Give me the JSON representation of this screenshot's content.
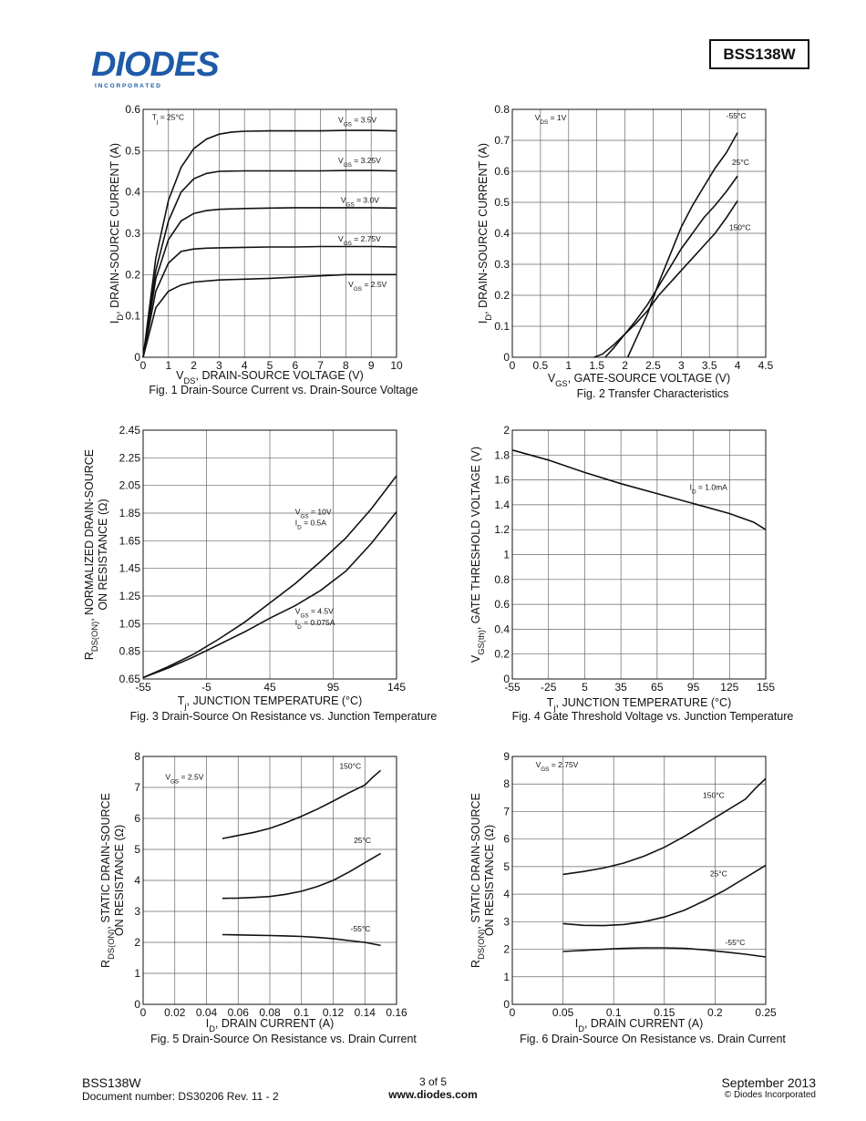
{
  "header": {
    "logo_text": "DIODES",
    "logo_sub": "I N C O R P O R A T E D",
    "part_number": "BSS138W",
    "brand_blue": "#1e5aa8"
  },
  "footer": {
    "part": "BSS138W",
    "doc": "Document number: DS30206 Rev. 11 - 2",
    "page": "3 of 5",
    "url": "www.diodes.com",
    "date": "September 2013",
    "copyright": "© Diodes Incorporated"
  },
  "chart_data": [
    {
      "type": "line",
      "title": "Fig. 1  Drain-Source Current vs. Drain-Source Voltage",
      "xlabel": "V_DS, DRAIN-SOURCE VOLTAGE (V)",
      "ylabel": "I_D, DRAIN-SOURCE CURRENT (A)",
      "xlim": [
        0,
        10
      ],
      "ylim": [
        0,
        0.6
      ],
      "xticks": [
        0,
        1,
        2,
        3,
        4,
        5,
        6,
        7,
        8,
        9,
        10
      ],
      "yticks": [
        0,
        0.1,
        0.2,
        0.3,
        0.4,
        0.5,
        0.6
      ],
      "xtick_labels": [
        "0",
        "1",
        "2",
        "3",
        "4",
        "5",
        "6",
        "7",
        "8",
        "9",
        "10"
      ],
      "ytick_labels": [
        "0",
        "0.1",
        "0.2",
        "0.3",
        "0.4",
        "0.5",
        "0.6"
      ],
      "annotations": [
        {
          "text": "T_j = 25°C",
          "x": 0.35,
          "y": 0.575
        },
        {
          "text": "V_GS = 3.5V",
          "x": 7.7,
          "y": 0.568
        },
        {
          "text": "V_GS = 3.25V",
          "x": 7.7,
          "y": 0.47
        },
        {
          "text": "V_GS = 3.0V",
          "x": 7.8,
          "y": 0.374
        },
        {
          "text": "V_GS = 2.75V",
          "x": 7.7,
          "y": 0.28
        },
        {
          "text": "V_GS = 2.5V",
          "x": 8.1,
          "y": 0.17
        }
      ],
      "series": [
        {
          "name": "V_GS = 3.5V",
          "x": [
            0,
            0.5,
            1,
            1.5,
            2,
            2.5,
            3,
            3.5,
            4,
            5,
            6,
            7,
            8,
            9,
            10
          ],
          "y": [
            0,
            0.24,
            0.38,
            0.46,
            0.505,
            0.528,
            0.54,
            0.545,
            0.547,
            0.548,
            0.548,
            0.548,
            0.549,
            0.549,
            0.548
          ]
        },
        {
          "name": "V_GS = 3.25V",
          "x": [
            0,
            0.5,
            1,
            1.5,
            2,
            2.5,
            3,
            4,
            5,
            6,
            7,
            8,
            9,
            10
          ],
          "y": [
            0,
            0.21,
            0.33,
            0.4,
            0.432,
            0.445,
            0.45,
            0.451,
            0.451,
            0.451,
            0.451,
            0.452,
            0.452,
            0.451
          ]
        },
        {
          "name": "V_GS = 3.0V",
          "x": [
            0,
            0.5,
            1,
            1.5,
            2,
            2.5,
            3,
            4,
            5,
            6,
            7,
            8,
            9,
            10
          ],
          "y": [
            0,
            0.19,
            0.285,
            0.33,
            0.348,
            0.355,
            0.358,
            0.36,
            0.361,
            0.362,
            0.362,
            0.362,
            0.362,
            0.361
          ]
        },
        {
          "name": "V_GS = 2.75V",
          "x": [
            0,
            0.5,
            1,
            1.5,
            2,
            2.5,
            3,
            4,
            5,
            6,
            7,
            8,
            9,
            10
          ],
          "y": [
            0,
            0.16,
            0.228,
            0.256,
            0.262,
            0.264,
            0.265,
            0.266,
            0.267,
            0.267,
            0.268,
            0.268,
            0.268,
            0.267
          ]
        },
        {
          "name": "V_GS = 2.5V",
          "x": [
            0,
            0.5,
            1,
            1.5,
            2,
            3,
            4,
            5,
            6,
            7,
            8,
            9,
            10
          ],
          "y": [
            0,
            0.12,
            0.16,
            0.175,
            0.182,
            0.187,
            0.189,
            0.191,
            0.194,
            0.197,
            0.2,
            0.2,
            0.2
          ]
        }
      ]
    },
    {
      "type": "line",
      "title": "Fig. 2  Transfer Characteristics",
      "xlabel": "V_GS, GATE-SOURCE VOLTAGE (V)",
      "ylabel": "I_D, DRAIN-SOURCE CURRENT (A)",
      "xlim": [
        0,
        4.5
      ],
      "ylim": [
        0,
        0.8
      ],
      "xticks": [
        0,
        0.5,
        1,
        1.5,
        2,
        2.5,
        3,
        3.5,
        4,
        4.5
      ],
      "yticks": [
        0,
        0.1,
        0.2,
        0.3,
        0.4,
        0.5,
        0.6,
        0.7,
        0.8
      ],
      "xtick_labels": [
        "0",
        "0.5",
        "1",
        "1.5",
        "2",
        "2.5",
        "3",
        "3.5",
        "4",
        "4.5"
      ],
      "ytick_labels": [
        "0",
        "0.1",
        "0.2",
        "0.3",
        "0.4",
        "0.5",
        "0.6",
        "0.7",
        "0.8"
      ],
      "annotations": [
        {
          "text": "V_DS = 1V",
          "x": 0.4,
          "y": 0.765
        },
        {
          "text": "-55°C",
          "x": 3.8,
          "y": 0.77
        },
        {
          "text": "25°C",
          "x": 3.9,
          "y": 0.62
        },
        {
          "text": "150°C",
          "x": 3.85,
          "y": 0.41
        }
      ],
      "series": [
        {
          "name": "-55°C",
          "x": [
            2.05,
            2.2,
            2.4,
            2.6,
            2.8,
            3.0,
            3.2,
            3.4,
            3.6,
            3.8,
            4.0
          ],
          "y": [
            0,
            0.06,
            0.14,
            0.24,
            0.33,
            0.42,
            0.49,
            0.55,
            0.61,
            0.66,
            0.725
          ]
        },
        {
          "name": "25°C",
          "x": [
            1.65,
            1.8,
            2.0,
            2.2,
            2.4,
            2.6,
            2.8,
            3.0,
            3.2,
            3.4,
            3.6,
            3.8,
            4.0
          ],
          "y": [
            0,
            0.03,
            0.075,
            0.12,
            0.17,
            0.23,
            0.29,
            0.35,
            0.4,
            0.45,
            0.49,
            0.535,
            0.585
          ]
        },
        {
          "name": "150°C",
          "x": [
            1.45,
            1.6,
            1.8,
            2.0,
            2.2,
            2.4,
            2.6,
            2.8,
            3.0,
            3.2,
            3.4,
            3.6,
            3.8,
            4.0
          ],
          "y": [
            0,
            0.01,
            0.04,
            0.075,
            0.11,
            0.15,
            0.2,
            0.24,
            0.28,
            0.32,
            0.36,
            0.4,
            0.45,
            0.505
          ]
        }
      ]
    },
    {
      "type": "line",
      "title": "Fig. 3  Drain-Source On Resistance vs. Junction Temperature",
      "xlabel": "T_j, JUNCTION TEMPERATURE (°C)",
      "ylabel": "R_DS(ON), NORMALIZED DRAIN-SOURCE ON RESISTANCE (Ω)",
      "xlim": [
        -55,
        145
      ],
      "ylim": [
        0.65,
        2.45
      ],
      "xticks": [
        -55,
        -5,
        45,
        95,
        145
      ],
      "yticks": [
        0.65,
        0.85,
        1.05,
        1.25,
        1.45,
        1.65,
        1.85,
        2.05,
        2.25,
        2.45
      ],
      "xtick_labels": [
        "-55",
        "-5",
        "45",
        "95",
        "145"
      ],
      "ytick_labels": [
        "0.65",
        "0.85",
        "1.05",
        "1.25",
        "1.45",
        "1.65",
        "1.85",
        "2.05",
        "2.25",
        "2.45"
      ],
      "annotations": [
        {
          "text": "V_GS = 10V",
          "x": 65,
          "y": 1.84
        },
        {
          "text": "I_D = 0.5A",
          "x": 65,
          "y": 1.76
        },
        {
          "text": "V_GS = 4.5V",
          "x": 65,
          "y": 1.12
        },
        {
          "text": "I_D = 0.075A",
          "x": 65,
          "y": 1.04
        }
      ],
      "series": [
        {
          "name": "V_GS = 10V, I_D = 0.5A",
          "x": [
            -55,
            -35,
            -15,
            5,
            25,
            45,
            65,
            85,
            105,
            125,
            145
          ],
          "y": [
            0.66,
            0.74,
            0.83,
            0.94,
            1.06,
            1.2,
            1.34,
            1.5,
            1.67,
            1.88,
            2.12
          ]
        },
        {
          "name": "V_GS = 4.5V, I_D = 0.075A",
          "x": [
            -55,
            -35,
            -15,
            5,
            25,
            45,
            65,
            85,
            105,
            125,
            145
          ],
          "y": [
            0.66,
            0.73,
            0.81,
            0.9,
            0.99,
            1.09,
            1.18,
            1.29,
            1.43,
            1.63,
            1.86
          ]
        }
      ]
    },
    {
      "type": "line",
      "title": "Fig. 4  Gate Threshold Voltage vs. Junction Temperature",
      "xlabel": "T_j, JUNCTION TEMPERATURE (°C)",
      "ylabel": "V_GS(th), GATE THRESHOLD VOLTAGE (V)",
      "xlim": [
        -55,
        155
      ],
      "ylim": [
        0,
        2
      ],
      "xticks": [
        -55,
        -25,
        5,
        35,
        65,
        95,
        125,
        155
      ],
      "yticks": [
        0,
        0.2,
        0.4,
        0.6,
        0.8,
        1,
        1.2,
        1.4,
        1.6,
        1.8,
        2
      ],
      "xtick_labels": [
        "-55",
        "-25",
        "5",
        "35",
        "65",
        "95",
        "125",
        "155"
      ],
      "ytick_labels": [
        "0",
        "0.2",
        "0.4",
        "0.6",
        "0.8",
        "1",
        "1.2",
        "1.4",
        "1.6",
        "1.8",
        "2"
      ],
      "annotations": [
        {
          "text": "I_D = 1.0mA",
          "x": 92,
          "y": 1.52
        }
      ],
      "series": [
        {
          "name": "I_D = 1.0mA",
          "x": [
            -55,
            -25,
            5,
            35,
            65,
            95,
            125,
            145,
            155
          ],
          "y": [
            1.84,
            1.76,
            1.66,
            1.57,
            1.49,
            1.41,
            1.33,
            1.26,
            1.2
          ]
        }
      ]
    },
    {
      "type": "line",
      "title": "Fig. 5  Drain-Source On Resistance vs. Drain Current",
      "xlabel": "I_D, DRAIN CURRENT (A)",
      "ylabel": "R_DS(ON), STATIC DRAIN-SOURCE ON RESISTANCE (Ω)",
      "xlim": [
        0,
        0.16
      ],
      "ylim": [
        0,
        8
      ],
      "xticks": [
        0,
        0.02,
        0.04,
        0.06,
        0.08,
        0.1,
        0.12,
        0.14,
        0.16
      ],
      "yticks": [
        0,
        1,
        2,
        3,
        4,
        5,
        6,
        7,
        8
      ],
      "xtick_labels": [
        "0",
        "0.02",
        "0.04",
        "0.06",
        "0.08",
        "0.1",
        "0.12",
        "0.14",
        "0.16"
      ],
      "ytick_labels": [
        "0",
        "1",
        "2",
        "3",
        "4",
        "5",
        "6",
        "7",
        "8"
      ],
      "annotations": [
        {
          "text": "V_GS = 2.5V",
          "x": 0.014,
          "y": 7.25
        },
        {
          "text": "150°C",
          "x": 0.124,
          "y": 7.6
        },
        {
          "text": "25°C",
          "x": 0.133,
          "y": 5.2
        },
        {
          "text": "-55°C",
          "x": 0.131,
          "y": 2.35
        }
      ],
      "series": [
        {
          "name": "150°C",
          "x": [
            0.05,
            0.06,
            0.07,
            0.08,
            0.09,
            0.1,
            0.11,
            0.12,
            0.13,
            0.14,
            0.145,
            0.15
          ],
          "y": [
            5.35,
            5.45,
            5.55,
            5.68,
            5.86,
            6.07,
            6.3,
            6.56,
            6.83,
            7.08,
            7.33,
            7.55
          ]
        },
        {
          "name": "25°C",
          "x": [
            0.05,
            0.06,
            0.07,
            0.08,
            0.09,
            0.1,
            0.11,
            0.12,
            0.13,
            0.14,
            0.15
          ],
          "y": [
            3.42,
            3.43,
            3.45,
            3.48,
            3.55,
            3.65,
            3.8,
            4.0,
            4.27,
            4.57,
            4.87
          ]
        },
        {
          "name": "-55°C",
          "x": [
            0.05,
            0.06,
            0.07,
            0.08,
            0.09,
            0.1,
            0.11,
            0.12,
            0.13,
            0.14,
            0.15
          ],
          "y": [
            2.25,
            2.24,
            2.23,
            2.22,
            2.21,
            2.19,
            2.16,
            2.12,
            2.06,
            2.0,
            1.9
          ]
        }
      ]
    },
    {
      "type": "line",
      "title": "Fig. 6  Drain-Source On Resistance vs. Drain Current",
      "xlabel": "I_D, DRAIN CURRENT (A)",
      "ylabel": "R_DS(ON), STATIC DRAIN-SOURCE ON RESISTANCE (Ω)",
      "xlim": [
        0,
        0.25
      ],
      "ylim": [
        0,
        9
      ],
      "xticks": [
        0,
        0.05,
        0.1,
        0.15,
        0.2,
        0.25
      ],
      "yticks": [
        0,
        1,
        2,
        3,
        4,
        5,
        6,
        7,
        8,
        9
      ],
      "xtick_labels": [
        "0",
        "0.05",
        "0.1",
        "0.15",
        "0.2",
        "0.25"
      ],
      "ytick_labels": [
        "0",
        "1",
        "2",
        "3",
        "4",
        "5",
        "6",
        "7",
        "8",
        "9"
      ],
      "annotations": [
        {
          "text": "V_GS = 2.75V",
          "x": 0.023,
          "y": 8.6
        },
        {
          "text": "150°C",
          "x": 0.188,
          "y": 7.5
        },
        {
          "text": "25°C",
          "x": 0.195,
          "y": 4.65
        },
        {
          "text": "-55°C",
          "x": 0.21,
          "y": 2.15
        }
      ],
      "series": [
        {
          "name": "150°C",
          "x": [
            0.05,
            0.07,
            0.09,
            0.11,
            0.13,
            0.15,
            0.17,
            0.19,
            0.21,
            0.23,
            0.24,
            0.25
          ],
          "y": [
            4.72,
            4.82,
            4.95,
            5.13,
            5.38,
            5.7,
            6.1,
            6.55,
            7.0,
            7.45,
            7.85,
            8.2
          ]
        },
        {
          "name": "25°C",
          "x": [
            0.05,
            0.07,
            0.09,
            0.11,
            0.13,
            0.15,
            0.17,
            0.19,
            0.21,
            0.23,
            0.25
          ],
          "y": [
            2.93,
            2.87,
            2.86,
            2.9,
            3.0,
            3.17,
            3.42,
            3.77,
            4.15,
            4.6,
            5.05
          ]
        },
        {
          "name": "-55°C",
          "x": [
            0.05,
            0.07,
            0.09,
            0.11,
            0.13,
            0.15,
            0.17,
            0.19,
            0.21,
            0.23,
            0.25
          ],
          "y": [
            1.92,
            1.96,
            2.0,
            2.03,
            2.05,
            2.05,
            2.03,
            1.98,
            1.9,
            1.82,
            1.72
          ]
        }
      ]
    }
  ]
}
